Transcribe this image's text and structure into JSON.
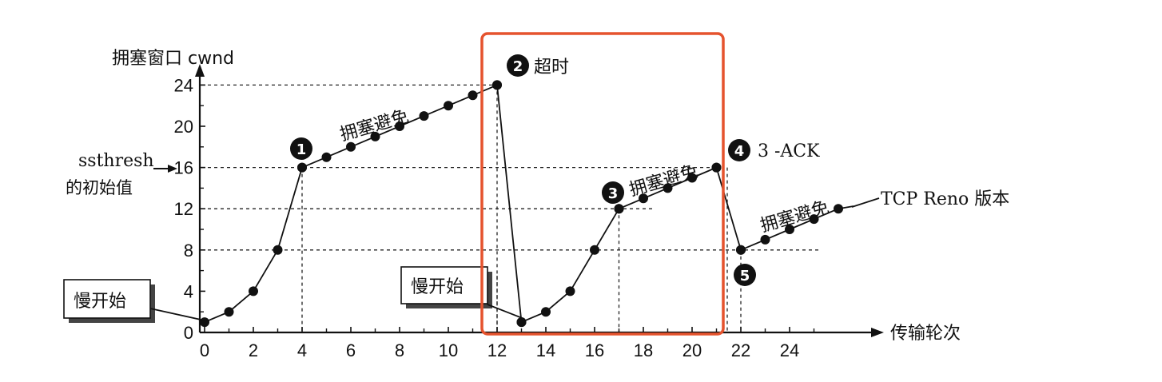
{
  "chart_data": {
    "type": "line",
    "ylabel": "拥塞窗口 cwnd",
    "xlabel": "传输轮次",
    "x_ticks": [
      "0",
      "2",
      "4",
      "6",
      "8",
      "10",
      "12",
      "14",
      "16",
      "18",
      "20",
      "22",
      "24"
    ],
    "y_ticks": [
      "0",
      "4",
      "8",
      "12",
      "16",
      "20",
      "24"
    ],
    "xlim": [
      0,
      26
    ],
    "ylim": [
      0,
      25
    ],
    "series": [
      {
        "x": [
          0,
          1,
          2,
          3,
          4
        ],
        "y": [
          1,
          2,
          4,
          8,
          16
        ]
      },
      {
        "x": [
          4,
          5,
          6,
          7,
          8,
          9,
          10,
          11,
          12
        ],
        "y": [
          16,
          17,
          18,
          19,
          20,
          21,
          22,
          23,
          24
        ]
      },
      {
        "x": [
          12,
          13
        ],
        "y": [
          24,
          1
        ]
      },
      {
        "x": [
          13,
          14,
          15,
          16,
          17
        ],
        "y": [
          1,
          2,
          4,
          8,
          12
        ]
      },
      {
        "x": [
          17,
          18,
          19,
          20,
          21
        ],
        "y": [
          12,
          13,
          14,
          15,
          16
        ]
      },
      {
        "x": [
          21,
          22
        ],
        "y": [
          16,
          8
        ]
      },
      {
        "x": [
          22,
          23,
          24,
          25,
          26
        ],
        "y": [
          8,
          9,
          10,
          11,
          12
        ]
      }
    ],
    "annotations": {
      "ssthresh_line1": "ssthresh",
      "ssthresh_line2": "的初始值",
      "slow_start_1": "慢开始",
      "slow_start_2": "慢开始",
      "congestion_avoid_1": "拥塞避免",
      "congestion_avoid_2": "拥塞避免",
      "congestion_avoid_3": "拥塞避免",
      "timeout": "超时",
      "three_ack": "3 -ACK",
      "reno": "TCP Reno 版本",
      "marker_1": "1",
      "marker_2": "2",
      "marker_3": "3",
      "marker_4": "4",
      "marker_5": "5"
    },
    "highlight_box_color": "#e5532e"
  }
}
